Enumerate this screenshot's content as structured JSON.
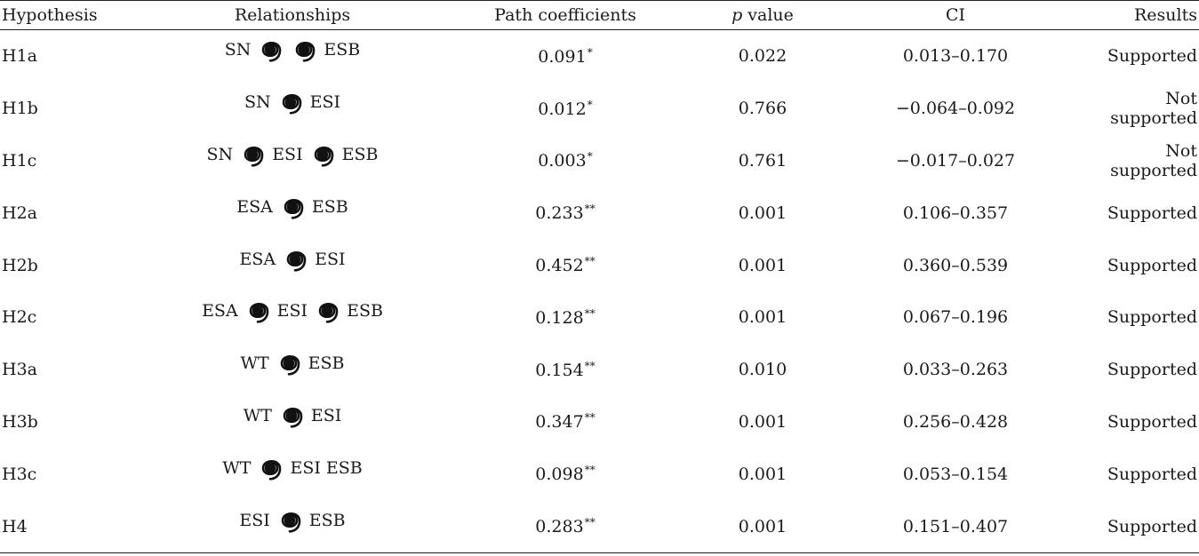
{
  "table": {
    "headers": {
      "hypothesis": "Hypothesis",
      "relationships": "Relationships",
      "path": "Path coefficients",
      "p_italic": "p",
      "p_rest": " value",
      "ci": "CI",
      "results": "Results"
    },
    "rows": [
      {
        "hyp": "H1a",
        "rel": [
          {
            "t": "SN"
          },
          {
            "icon": "spiral-arrow-icon"
          },
          {
            "icon": "spiral-arrow-icon"
          },
          {
            "t": "ESB"
          }
        ],
        "coef": "0.091",
        "sig": "*",
        "p": "0.022",
        "ci": "0.013–0.170",
        "result": "Supported"
      },
      {
        "hyp": "H1b",
        "rel": [
          {
            "t": "SN"
          },
          {
            "icon": "spiral-arrow-icon"
          },
          {
            "t": "ESI"
          }
        ],
        "coef": "0.012",
        "sig": "*",
        "p": "0.766",
        "ci": "−0.064–0.092",
        "result": "Not supported"
      },
      {
        "hyp": "H1c",
        "rel": [
          {
            "t": "SN"
          },
          {
            "icon": "spiral-arrow-icon"
          },
          {
            "t": "ESI"
          },
          {
            "icon": "spiral-arrow-icon"
          },
          {
            "t": "ESB"
          }
        ],
        "coef": "0.003",
        "sig": "*",
        "p": "0.761",
        "ci": "−0.017–0.027",
        "result": "Not supported"
      },
      {
        "hyp": "H2a",
        "rel": [
          {
            "t": "ESA"
          },
          {
            "icon": "spiral-arrow-icon"
          },
          {
            "t": "ESB"
          }
        ],
        "coef": "0.233",
        "sig": "**",
        "p": "0.001",
        "ci": "0.106–0.357",
        "result": "Supported"
      },
      {
        "hyp": "H2b",
        "rel": [
          {
            "t": "ESA"
          },
          {
            "icon": "spiral-arrow-icon"
          },
          {
            "t": "ESI"
          }
        ],
        "coef": "0.452",
        "sig": "**",
        "p": "0.001",
        "ci": "0.360–0.539",
        "result": "Supported"
      },
      {
        "hyp": "H2c",
        "rel": [
          {
            "t": "ESA"
          },
          {
            "icon": "spiral-arrow-icon"
          },
          {
            "t": "ESI"
          },
          {
            "icon": "spiral-arrow-icon"
          },
          {
            "t": "ESB"
          }
        ],
        "coef": "0.128",
        "sig": "**",
        "p": "0.001",
        "ci": "0.067–0.196",
        "result": "Supported"
      },
      {
        "hyp": "H3a",
        "rel": [
          {
            "t": "WT"
          },
          {
            "icon": "spiral-arrow-icon"
          },
          {
            "t": "ESB"
          }
        ],
        "coef": "0.154",
        "sig": "**",
        "p": "0.010",
        "ci": "0.033–0.263",
        "result": "Supported"
      },
      {
        "hyp": "H3b",
        "rel": [
          {
            "t": "WT"
          },
          {
            "icon": "spiral-arrow-icon"
          },
          {
            "t": "ESI"
          }
        ],
        "coef": "0.347",
        "sig": "**",
        "p": "0.001",
        "ci": "0.256–0.428",
        "result": "Supported"
      },
      {
        "hyp": "H3c",
        "rel": [
          {
            "t": "WT"
          },
          {
            "icon": "spiral-arrow-icon"
          },
          {
            "t": "ESI ESB"
          }
        ],
        "coef": "0.098",
        "sig": "**",
        "p": "0.001",
        "ci": "0.053–0.154",
        "result": "Supported"
      },
      {
        "hyp": "H4",
        "rel": [
          {
            "t": "ESI"
          },
          {
            "icon": "spiral-arrow-icon"
          },
          {
            "t": "ESB"
          }
        ],
        "coef": "0.283",
        "sig": "**",
        "p": "0.001",
        "ci": "0.151–0.407",
        "result": "Supported"
      }
    ]
  }
}
